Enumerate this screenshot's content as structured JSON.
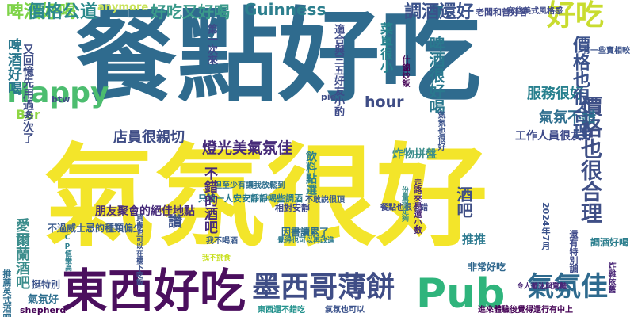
{
  "cloud": {
    "background": "#ffffff",
    "words": [
      {
        "key": "canguan",
        "text": "餐點好吃"
      },
      {
        "key": "qifen",
        "text": "氣氛很好"
      },
      {
        "key": "dongxi",
        "text": "東西好吃"
      },
      {
        "key": "moxi",
        "text": "墨西哥薄餅"
      },
      {
        "key": "pub",
        "text": "Pub"
      },
      {
        "key": "qifenjia",
        "text": "氣氛佳"
      },
      {
        "key": "haochi",
        "text": "好吃"
      },
      {
        "key": "jiage",
        "text": "價格也很合理"
      },
      {
        "key": "happy",
        "text": "Happy"
      },
      {
        "key": "pijiu",
        "text": "啤酒好喝"
      },
      {
        "key": "jiage_gong",
        "text": "價格公道"
      },
      {
        "key": "haohe",
        "text": "好吃又好喝"
      },
      {
        "key": "guinness",
        "text": "Guinness"
      },
      {
        "key": "tiaojiu",
        "text": "調酒還好"
      },
      {
        "key": "anymore",
        "text": "anymore"
      },
      {
        "key": "zhaohu",
        "text": "老闆和善好客"
      },
      {
        "key": "hour",
        "text": "hour"
      },
      {
        "key": "fuwu",
        "text": "服務很好"
      },
      {
        "key": "qifen_bc",
        "text": "氣氛不錯"
      },
      {
        "key": "dianyuan",
        "text": "店員很親切"
      },
      {
        "key": "dengguang",
        "text": "燈光美氣氛佳"
      },
      {
        "key": "zhawu",
        "text": "炸物拼盤"
      },
      {
        "key": "gongzuo",
        "text": "工作人員很友好"
      },
      {
        "key": "pengyou",
        "text": "朋友聚會的絕佳地點"
      },
      {
        "key": "buguo",
        "text": "不過威士忌的種類偏少"
      },
      {
        "key": "feichang",
        "text": "非常好吃"
      },
      {
        "key": "btw",
        "text": "btw"
      },
      {
        "key": "bar",
        "text": "Bar"
      },
      {
        "key": "shepherd",
        "text": "shepherd"
      },
      {
        "key": "pie",
        "text": "pie"
      },
      {
        "key": "qifenhao",
        "text": "氣氛好"
      },
      {
        "key": "tingtebie",
        "text": "挺特別"
      },
      {
        "key": "yinshu",
        "text": "因書讀累了"
      },
      {
        "key": "xiangdui",
        "text": "相對安靜"
      },
      {
        "key": "danzhiyou",
        "text": "只想一人安安靜靜喝些調酒"
      },
      {
        "key": "huanyou",
        "text": "但至少有讓我放鬆到"
      },
      {
        "key": "buganshuo",
        "text": "不敢說很頂"
      },
      {
        "key": "dongxi2",
        "text": "東西還不錯吃"
      },
      {
        "key": "qifenye",
        "text": "氣氛也可以"
      },
      {
        "key": "jinxingtu",
        "text": "進來體驗後覺得還行有中上"
      },
      {
        "key": "tiyanren",
        "text": "令人著迷與驚豔"
      },
      {
        "key": "kaocaidan",
        "text": "覺得也可以再改進"
      },
      {
        "key": "wobuhe",
        "text": "我不喝酒"
      },
      {
        "key": "mixue",
        "text": "我不挑食"
      },
      {
        "key": "canyie",
        "text": "餐點也很不錯"
      },
      {
        "key": "fenliang",
        "text": "份量很足夠"
      },
      {
        "key": "biejie",
        "text": "買書也可以在樓下吃飯"
      },
      {
        "key": "yinyue",
        "text": "Cp值蠻高"
      },
      {
        "key": "zhuanyi",
        "text": "價格也很合理"
      },
      {
        "key": "pijiu_v",
        "text": "啤酒很好喝"
      },
      {
        "key": "caidan",
        "text": "菜單很小"
      },
      {
        "key": "jiuba",
        "text": "酒吧"
      },
      {
        "key": "tuijian",
        "text": "推推"
      },
      {
        "key": "dangdu",
        "text": "不錯的酒吧"
      },
      {
        "key": "ai",
        "text": "愛爾蘭酒吧"
      },
      {
        "key": "buchuo",
        "text": "讚"
      },
      {
        "key": "jiuhao",
        "text": "啤酒好喝"
      },
      {
        "key": "jiabao",
        "text": "又回憶先用過多次了"
      },
      {
        "key": "zan",
        "text": "第一次來"
      },
      {
        "key": "jidu",
        "text": "適合與三五好友小酌"
      },
      {
        "key": "yinliao",
        "text": "飲料點選"
      },
      {
        "key": "wuzhao",
        "text": "什錦炒飯"
      },
      {
        "key": "zhuren",
        "text": "氣氛也很好"
      },
      {
        "key": "laomian",
        "text": "有些美式風格感"
      },
      {
        "key": "yousuo",
        "text": "有一些賣相較"
      },
      {
        "key": "pubv",
        "text": "推薦英式酒吧"
      },
      {
        "key": "zaijian",
        "text": "走路來是還小數"
      },
      {
        "key": "lao",
        "text": "調酒好喝"
      },
      {
        "key": "zhajian",
        "text": "炸雞依舊"
      },
      {
        "key": "2024",
        "text": "2024年7月"
      },
      {
        "key": "zhizi",
        "text": "還有特別調"
      }
    ]
  }
}
